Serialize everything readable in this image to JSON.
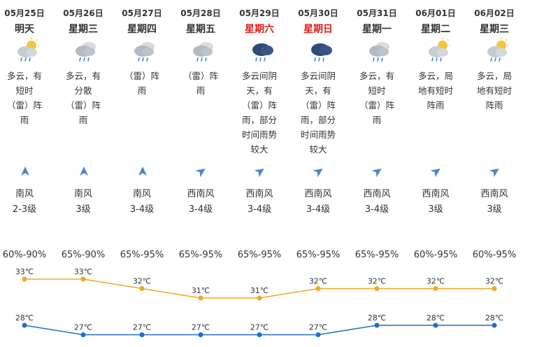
{
  "colors": {
    "high_line": "#f5a623",
    "low_line": "#1c6fc9",
    "weekend": "#e0201f",
    "arrow": "#4a86c8"
  },
  "days": [
    {
      "date": "05月25日",
      "weekday": "明天",
      "weekend": false,
      "icon": "cloudy-rain-sun-icon",
      "desc": "多云，有\n短时\n（雷）阵\n雨",
      "wind_dir": "南风",
      "wind_level": "2-3级",
      "wind_arrow": "arrow-north",
      "humidity": "60%-90%",
      "high": "33℃",
      "low": "28℃",
      "high_v": 33,
      "low_v": 28
    },
    {
      "date": "05月26日",
      "weekday": "星期三",
      "weekend": false,
      "icon": "cloudy-rain-icon",
      "desc": "多云，有\n分散\n（雷）阵\n雨",
      "wind_dir": "南风",
      "wind_level": "3级",
      "wind_arrow": "arrow-north",
      "humidity": "65%-90%",
      "high": "33℃",
      "low": "27℃",
      "high_v": 33,
      "low_v": 27
    },
    {
      "date": "05月27日",
      "weekday": "星期四",
      "weekend": false,
      "icon": "cloudy-rain-icon",
      "desc": "（雷）阵\n雨",
      "wind_dir": "南风",
      "wind_level": "3-4级",
      "wind_arrow": "arrow-north",
      "humidity": "65%-95%",
      "high": "32℃",
      "low": "27℃",
      "high_v": 32,
      "low_v": 27
    },
    {
      "date": "05月28日",
      "weekday": "星期五",
      "weekend": false,
      "icon": "cloudy-rain-icon",
      "desc": "（雷）阵\n雨",
      "wind_dir": "西南风",
      "wind_level": "3-4级",
      "wind_arrow": "arrow-northeast",
      "humidity": "65%-95%",
      "high": "31℃",
      "low": "27℃",
      "high_v": 31,
      "low_v": 27
    },
    {
      "date": "05月29日",
      "weekday": "星期六",
      "weekend": true,
      "icon": "dark-cloud-rain-icon",
      "desc": "多云间阴\n天，有\n（雷）阵\n雨，部分\n时间雨势\n较大",
      "wind_dir": "西南风",
      "wind_level": "3-4级",
      "wind_arrow": "arrow-northeast",
      "humidity": "65%-95%",
      "high": "31℃",
      "low": "27℃",
      "high_v": 31,
      "low_v": 27
    },
    {
      "date": "05月30日",
      "weekday": "星期日",
      "weekend": true,
      "icon": "dark-cloud-rain-icon",
      "desc": "多云间阴\n天，有\n（雷）阵\n雨，部分\n时间雨势\n较大",
      "wind_dir": "西南风",
      "wind_level": "3-4级",
      "wind_arrow": "arrow-northeast",
      "humidity": "65%-95%",
      "high": "32℃",
      "low": "27℃",
      "high_v": 32,
      "low_v": 27
    },
    {
      "date": "05月31日",
      "weekday": "星期一",
      "weekend": false,
      "icon": "cloudy-rain-icon",
      "desc": "多云，有\n短时\n（雷）阵\n雨",
      "wind_dir": "西南风",
      "wind_level": "3-4级",
      "wind_arrow": "arrow-northeast",
      "humidity": "65%-95%",
      "high": "32℃",
      "low": "28℃",
      "high_v": 32,
      "low_v": 28
    },
    {
      "date": "06月01日",
      "weekday": "星期二",
      "weekend": false,
      "icon": "cloudy-rain-sun-icon",
      "desc": "多云，局\n地有短时\n阵雨",
      "wind_dir": "西南风",
      "wind_level": "3级",
      "wind_arrow": "arrow-northeast",
      "humidity": "60%-95%",
      "high": "32℃",
      "low": "28℃",
      "high_v": 32,
      "low_v": 28
    },
    {
      "date": "06月02日",
      "weekday": "星期三",
      "weekend": false,
      "icon": "cloudy-rain-sun-icon",
      "desc": "多云，局\n地有短时\n阵雨",
      "wind_dir": "西南风",
      "wind_level": "3级",
      "wind_arrow": "arrow-northeast",
      "humidity": "60%-95%",
      "high": "32℃",
      "low": "28℃",
      "high_v": 32,
      "low_v": 28
    }
  ]
}
